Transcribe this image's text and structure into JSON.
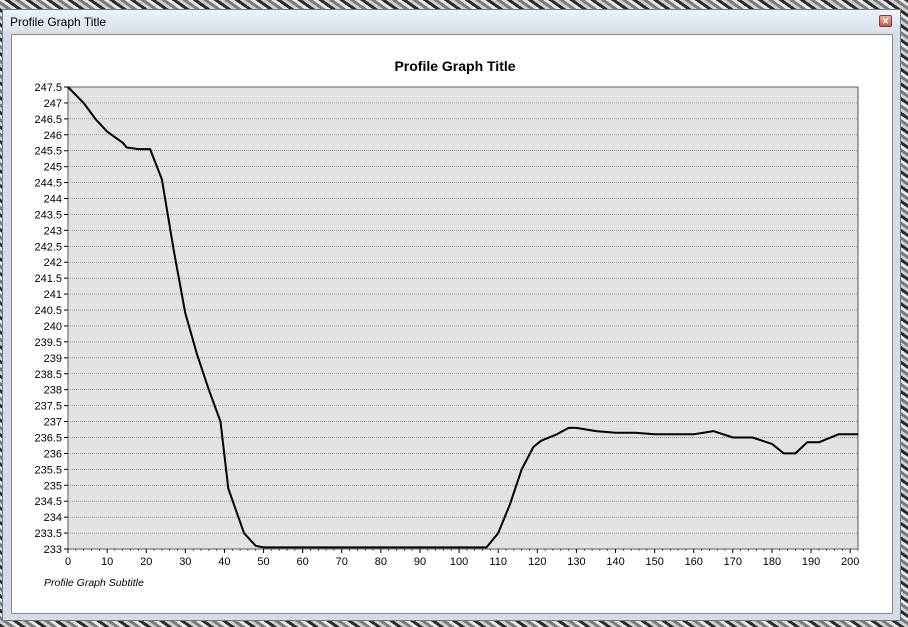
{
  "window": {
    "title": "Profile Graph Title",
    "close_icon": "close-icon"
  },
  "chart_data": {
    "type": "line",
    "title": "Profile Graph Title",
    "subtitle": "Profile Graph Subtitle",
    "xlabel": "",
    "ylabel": "",
    "xlim": [
      0,
      202
    ],
    "ylim": [
      233,
      247.5
    ],
    "xticks": [
      0,
      10,
      20,
      30,
      40,
      50,
      60,
      70,
      80,
      90,
      100,
      110,
      120,
      130,
      140,
      150,
      160,
      170,
      180,
      190,
      200
    ],
    "yticks": [
      233,
      233.5,
      234,
      234.5,
      235,
      235.5,
      236,
      236.5,
      237,
      237.5,
      238,
      238.5,
      239,
      239.5,
      240,
      240.5,
      241,
      241.5,
      242,
      242.5,
      243,
      243.5,
      244,
      244.5,
      245,
      245.5,
      246,
      246.5,
      247,
      247.5
    ],
    "grid": "horizontal",
    "colors": {
      "line": "#000000",
      "plot_bg": "#e2e2e2",
      "grid": "#707070"
    },
    "series": [
      {
        "x": [
          0,
          4,
          7,
          10,
          14,
          15,
          18,
          21,
          24,
          27,
          30,
          33,
          36,
          39,
          41,
          45,
          48,
          50,
          60,
          70,
          80,
          90,
          100,
          107,
          110,
          113,
          116,
          119,
          121,
          125,
          128,
          130,
          135,
          140,
          145,
          150,
          155,
          160,
          165,
          170,
          175,
          180,
          183,
          186,
          189,
          192,
          197,
          202
        ],
        "y": [
          247.5,
          247.0,
          246.5,
          246.1,
          245.75,
          245.6,
          245.55,
          245.55,
          244.6,
          242.4,
          240.4,
          239.1,
          238.0,
          237.0,
          234.9,
          233.5,
          233.1,
          233.05,
          233.05,
          233.05,
          233.05,
          233.05,
          233.05,
          233.05,
          233.5,
          234.4,
          235.5,
          236.2,
          236.4,
          236.6,
          236.8,
          236.8,
          236.7,
          236.65,
          236.65,
          236.6,
          236.6,
          236.6,
          236.7,
          236.5,
          236.5,
          236.3,
          236.0,
          236.0,
          236.35,
          236.35,
          236.6,
          236.6
        ]
      }
    ]
  }
}
